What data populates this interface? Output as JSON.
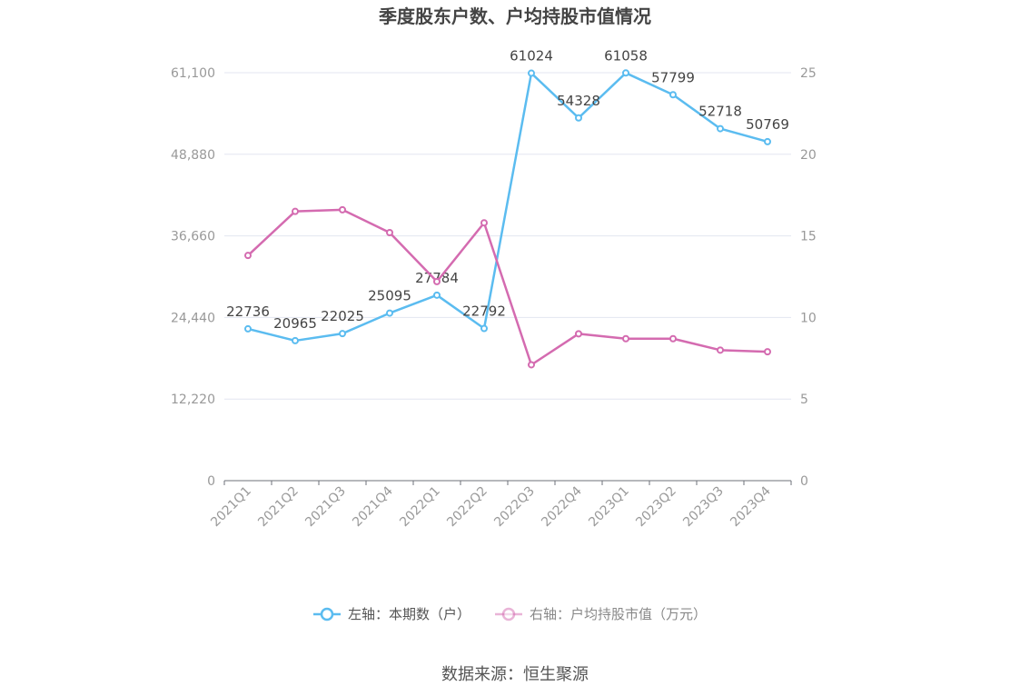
{
  "chart_data": {
    "type": "line",
    "title": "季度股东户数、户均持股市值情况",
    "categories": [
      "2021Q1",
      "2021Q2",
      "2021Q3",
      "2021Q4",
      "2022Q1",
      "2022Q2",
      "2022Q3",
      "2022Q4",
      "2023Q1",
      "2023Q2",
      "2023Q3",
      "2023Q4"
    ],
    "y_left": {
      "ticks": [
        "0",
        "12,220",
        "24,440",
        "36,660",
        "48,880",
        "61,100"
      ],
      "ylim": [
        0,
        61100
      ]
    },
    "y_right": {
      "ticks": [
        "0",
        "5",
        "10",
        "15",
        "20",
        "25"
      ],
      "ylim": [
        0,
        25
      ]
    },
    "series": [
      {
        "name": "左轴：本期数（户）",
        "axis": "left",
        "color": "#5bbcf0",
        "values": [
          22736,
          20965,
          22025,
          25095,
          27784,
          22792,
          61024,
          54328,
          61058,
          57799,
          52718,
          50769
        ],
        "labels": [
          "22736",
          "20965",
          "22025",
          "25095",
          "27784",
          "22792",
          "61024",
          "54328",
          "61058",
          "57799",
          "52718",
          "50769"
        ]
      },
      {
        "name": "右轴：户均持股市值（万元）",
        "axis": "right",
        "color": "#d46bb0",
        "values": [
          13.8,
          16.5,
          16.6,
          15.2,
          12.2,
          15.8,
          7.1,
          9.0,
          8.7,
          8.7,
          8.0,
          7.9
        ]
      }
    ],
    "grid": true,
    "legend_position": "bottom"
  },
  "source": "数据来源：恒生聚源"
}
